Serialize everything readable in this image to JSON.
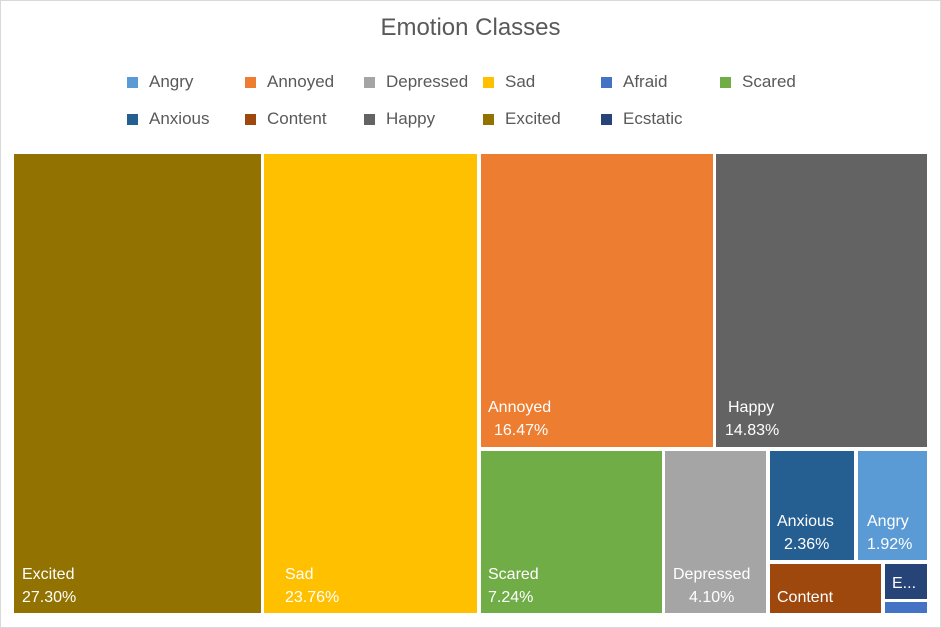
{
  "chart_data": {
    "type": "treemap",
    "title": "Emotion Classes",
    "legend_position": "top",
    "series": [
      {
        "name": "Excited",
        "value": 27.3,
        "label": "27.30%",
        "color": "#927200"
      },
      {
        "name": "Sad",
        "value": 23.76,
        "label": "23.76%",
        "color": "#FFC000"
      },
      {
        "name": "Annoyed",
        "value": 16.47,
        "label": "16.47%",
        "color": "#ED7D31"
      },
      {
        "name": "Happy",
        "value": 14.83,
        "label": "14.83%",
        "color": "#636363"
      },
      {
        "name": "Scared",
        "value": 7.24,
        "label": "7.24%",
        "color": "#70AD47"
      },
      {
        "name": "Depressed",
        "value": 4.1,
        "label": "4.10%",
        "color": "#A5A5A5"
      },
      {
        "name": "Anxious",
        "value": 2.36,
        "label": "2.36%",
        "color": "#255E91"
      },
      {
        "name": "Angry",
        "value": 1.92,
        "label": "1.92%",
        "color": "#5B9BD5"
      },
      {
        "name": "Content",
        "value": 1.4,
        "label": "",
        "color": "#9E480E"
      },
      {
        "name": "Ecstatic",
        "value": 0.4,
        "label": "",
        "display_name": "E...",
        "color": "#264478"
      },
      {
        "name": "Afraid",
        "value": 0.22,
        "label": "",
        "color": "#4472C4"
      }
    ],
    "legend": [
      {
        "name": "Angry",
        "color": "#5B9BD5"
      },
      {
        "name": "Annoyed",
        "color": "#ED7D31"
      },
      {
        "name": "Depressed",
        "color": "#A5A5A5"
      },
      {
        "name": "Sad",
        "color": "#FFC000"
      },
      {
        "name": "Afraid",
        "color": "#4472C4"
      },
      {
        "name": "Scared",
        "color": "#70AD47"
      },
      {
        "name": "Anxious",
        "color": "#255E91"
      },
      {
        "name": "Content",
        "color": "#9E480E"
      },
      {
        "name": "Happy",
        "color": "#636363"
      },
      {
        "name": "Excited",
        "color": "#927200"
      },
      {
        "name": "Ecstatic",
        "color": "#264478"
      }
    ]
  }
}
